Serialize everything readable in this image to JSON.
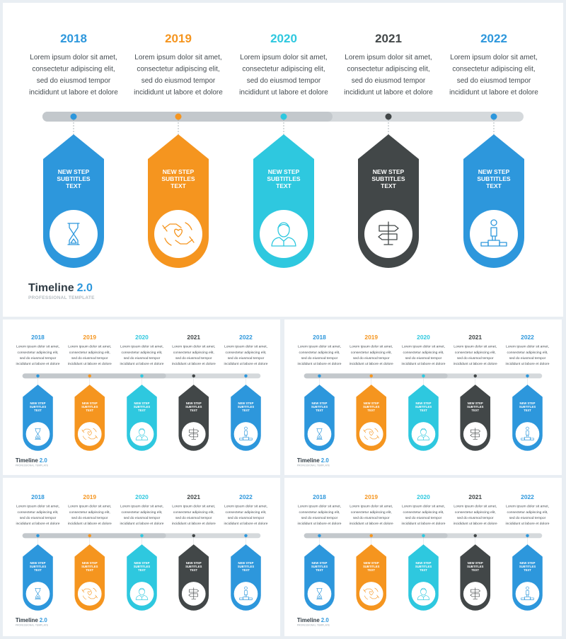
{
  "colors": {
    "blue": "#2d97dc",
    "orange": "#f5951f",
    "cyan": "#2ec8df",
    "dark": "#424748",
    "track_light": "#d5d9dc",
    "track_mid": "#c3c8cc",
    "title_dark": "#2f3b44",
    "title_accent": "#2d97dc",
    "subtitle_gray": "#b5bcc2",
    "body_text": "#444b50"
  },
  "timeline": {
    "description": "Lorem ipsum dolor sit amet, consectetur adipiscing elit, sed do eiusmod tempor incididunt ut labore et dolore",
    "desc_lines": [
      "Lorem ipsum dolor sit amet,",
      "consectetur adipiscing elit,",
      "sed do eiusmod tempor",
      "incididunt ut labore et dolore"
    ],
    "steps": [
      {
        "year": "2018",
        "year_color": "#2d97dc",
        "color": "#2d97dc",
        "card_text": "NEW STEP SUBTITLES TEXT",
        "card_lines": [
          "NEW STEP",
          "SUBTITLES",
          "TEXT"
        ],
        "icon": "hourglass-icon"
      },
      {
        "year": "2019",
        "year_color": "#f5951f",
        "color": "#f5951f",
        "card_text": "NEW STEP SUBTITLES TEXT",
        "card_lines": [
          "NEW STEP",
          "SUBTITLES",
          "TEXT"
        ],
        "icon": "hands-heart-icon"
      },
      {
        "year": "2020",
        "year_color": "#2ec8df",
        "color": "#2ec8df",
        "card_text": "NEW STEP SUBTITLES TEXT",
        "card_lines": [
          "NEW STEP",
          "SUBTITLES",
          "TEXT"
        ],
        "icon": "person-icon"
      },
      {
        "year": "2021",
        "year_color": "#424748",
        "color": "#424748",
        "card_text": "NEW STEP SUBTITLES TEXT",
        "card_lines": [
          "NEW STEP",
          "SUBTITLES",
          "TEXT"
        ],
        "icon": "signpost-icon"
      },
      {
        "year": "2022",
        "year_color": "#2d97dc",
        "color": "#2d97dc",
        "card_text": "NEW STEP SUBTITLES TEXT",
        "card_lines": [
          "NEW STEP",
          "SUBTITLES",
          "TEXT"
        ],
        "icon": "podium-icon"
      }
    ]
  },
  "footer": {
    "title": "Timeline",
    "version": "2.0",
    "subtitle": "PROFESSIONAL TEMPLATE"
  }
}
